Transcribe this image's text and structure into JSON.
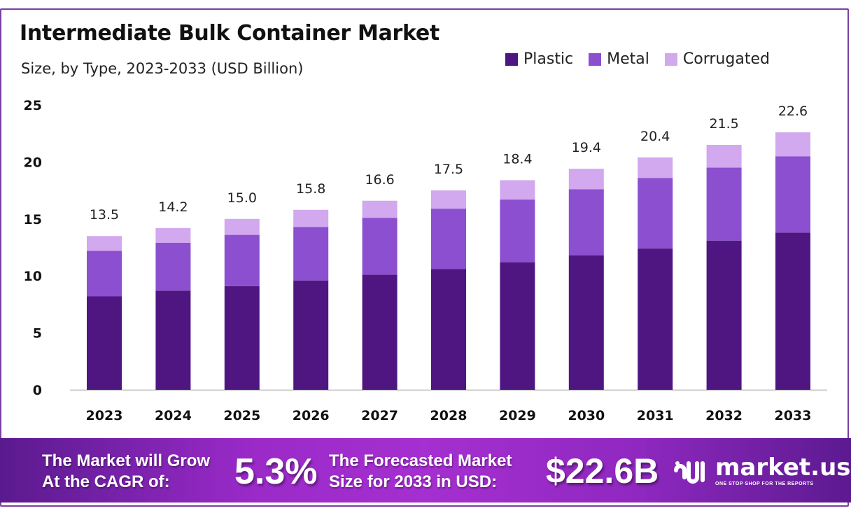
{
  "chart_data": {
    "type": "bar",
    "stacked": true,
    "title": "Intermediate Bulk Container Market",
    "subtitle": "Size, by Type, 2023-2033 (USD Billion)",
    "categories": [
      "2023",
      "2024",
      "2025",
      "2026",
      "2027",
      "2028",
      "2029",
      "2030",
      "2031",
      "2032",
      "2033"
    ],
    "series": [
      {
        "name": "Plastic",
        "color": "#4f1681",
        "values": [
          8.2,
          8.7,
          9.1,
          9.6,
          10.1,
          10.6,
          11.2,
          11.8,
          12.4,
          13.1,
          13.8
        ]
      },
      {
        "name": "Metal",
        "color": "#8b4fcf",
        "values": [
          4.0,
          4.2,
          4.5,
          4.7,
          5.0,
          5.3,
          5.5,
          5.8,
          6.2,
          6.4,
          6.7
        ]
      },
      {
        "name": "Corrugated",
        "color": "#d2a8ee",
        "values": [
          1.3,
          1.3,
          1.4,
          1.5,
          1.5,
          1.6,
          1.7,
          1.8,
          1.8,
          2.0,
          2.1
        ]
      }
    ],
    "totals": [
      "13.5",
      "14.2",
      "15.0",
      "15.8",
      "16.6",
      "17.5",
      "18.4",
      "19.4",
      "20.4",
      "21.5",
      "22.6"
    ],
    "yticks": [
      0,
      5,
      10,
      15,
      20,
      25
    ],
    "ylim": [
      0,
      25
    ],
    "grid": false,
    "legend": "top-right"
  },
  "footer": {
    "cagr_label_1": "The Market will Grow",
    "cagr_label_2": "At the CAGR of:",
    "cagr_value": "5.3%",
    "forecast_label_1": "The Forecasted Market",
    "forecast_label_2": "Size for 2033 in USD:",
    "forecast_value": "$22.6B",
    "logo_name": "market.us",
    "logo_tagline": "ONE STOP SHOP FOR THE REPORTS"
  }
}
